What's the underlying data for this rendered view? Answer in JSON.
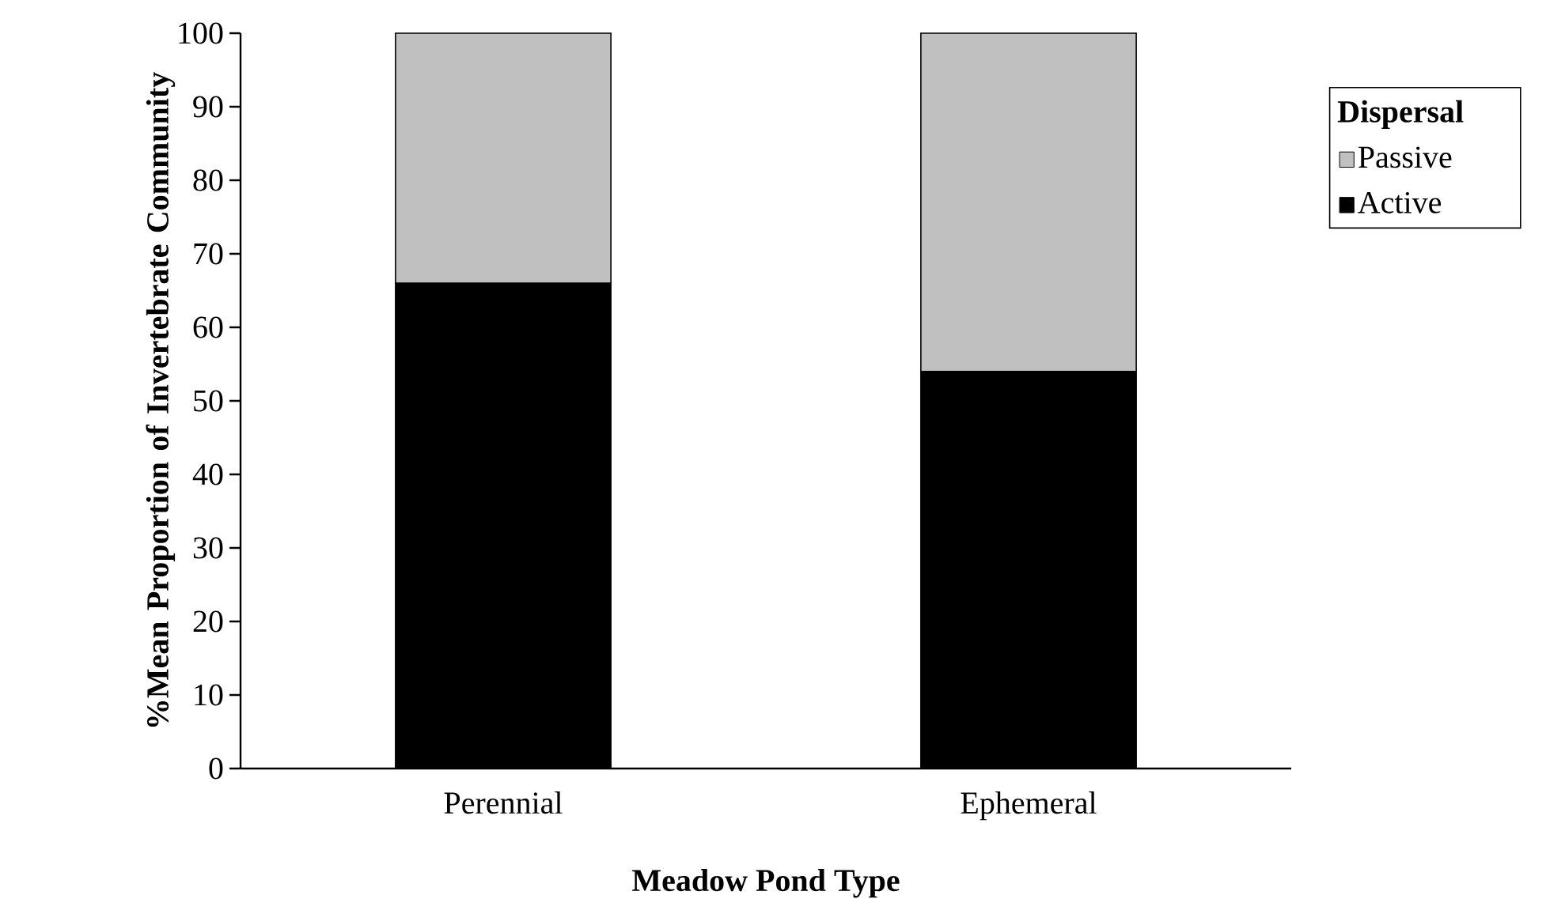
{
  "chart_data": {
    "type": "bar",
    "stacked": true,
    "xlabel": "Meadow Pond Type",
    "ylabel": "%Mean Proportion of Invertebrate Community",
    "legend_title": "Dispersal",
    "legend": "top right",
    "categories": [
      "Perennial",
      "Ephemeral"
    ],
    "series": [
      {
        "name": "Active",
        "color": "#000000",
        "values": [
          66,
          54
        ]
      },
      {
        "name": "Passive",
        "color": "#c0c0c0",
        "values": [
          34,
          46
        ]
      }
    ],
    "ylim": [
      0,
      100
    ],
    "yticks": [
      0,
      10,
      20,
      30,
      40,
      50,
      60,
      70,
      80,
      90,
      100
    ]
  }
}
